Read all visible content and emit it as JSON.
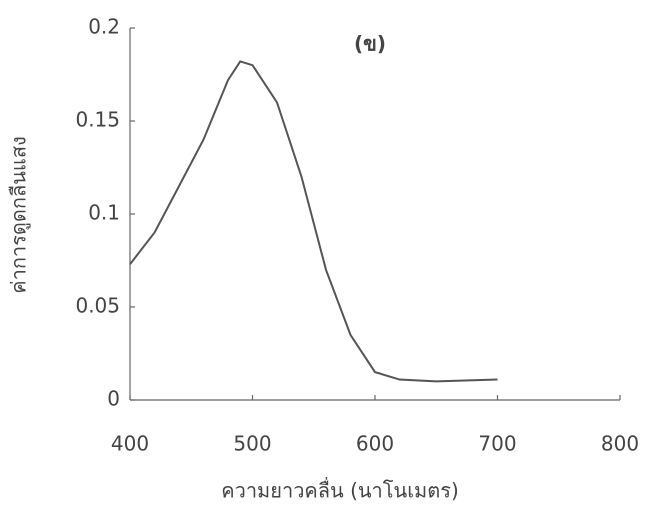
{
  "chart_data": {
    "type": "line",
    "annotation": "(ข)",
    "x_label": "ความยาวคลื่น (นาโนเมตร)",
    "y_label": "ค่าการดูดกลืนแสง",
    "x": [
      400,
      420,
      440,
      460,
      480,
      490,
      500,
      520,
      540,
      560,
      580,
      600,
      620,
      650,
      700
    ],
    "series": [
      {
        "color": "#555555",
        "values": [
          0.073,
          0.09,
          0.115,
          0.14,
          0.172,
          0.182,
          0.18,
          0.16,
          0.12,
          0.07,
          0.035,
          0.015,
          0.011,
          0.01,
          0.011
        ]
      }
    ],
    "xlim": [
      400,
      800
    ],
    "xticks": [
      400,
      500,
      600,
      700,
      800
    ],
    "ylim": [
      0,
      0.2
    ],
    "yticks": [
      0,
      0.05,
      0.1,
      0.15,
      0.2
    ]
  }
}
